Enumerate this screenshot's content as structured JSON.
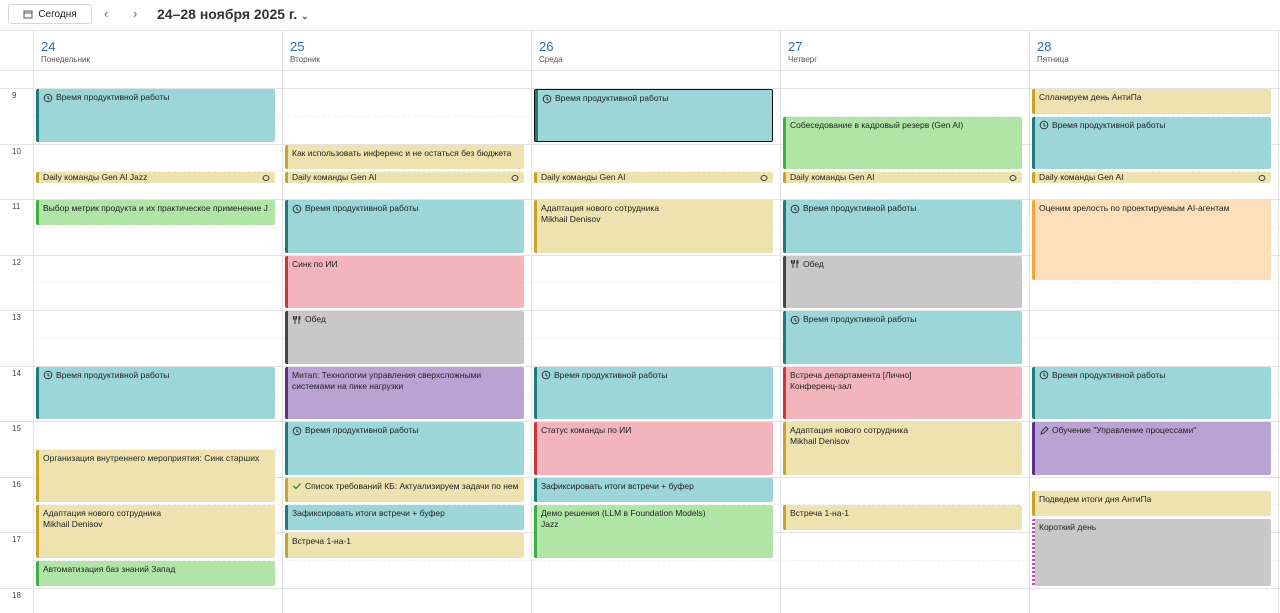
{
  "toolbar": {
    "today": "Сегодня",
    "range": "24–28 ноября 2025 г."
  },
  "hours": [
    9,
    10,
    11,
    12,
    13,
    14,
    15,
    16,
    17,
    18
  ],
  "days": [
    {
      "number": 24,
      "weekday": "Понедельник",
      "events": [
        {
          "title": "Время продуктивной работы"
        },
        {
          "title": "Daily команды Gen AI Jazz"
        },
        {
          "title": "Выбор метрик продукта и их практическое применение J"
        },
        {
          "title": "Время продуктивной работы"
        },
        {
          "title": "Организация внутреннего мероприятия: Синк старших"
        },
        {
          "title": "Адаптация нового сотрудника",
          "subtitle": "Mikhail Denisov"
        },
        {
          "title": "Автоматизация баз знаний Запад"
        }
      ]
    },
    {
      "number": 25,
      "weekday": "Вторник",
      "events": [
        {
          "title": "Как использовать инференс и не остаться без бюджета"
        },
        {
          "title": "Daily команды Gen AI"
        },
        {
          "title": "Время продуктивной работы"
        },
        {
          "title": "Синк по ИИ"
        },
        {
          "title": "Обед"
        },
        {
          "title": "Митап: Технологии управления сверхсложными системами на пике нагрузки"
        },
        {
          "title": "Время продуктивной работы"
        },
        {
          "title": "Список требований КБ: Актуализируем задачи по нем"
        },
        {
          "title": "Зафиксировать итоги встречи + буфер"
        },
        {
          "title": "Встреча 1-на-1"
        }
      ]
    },
    {
      "number": 26,
      "weekday": "Среда",
      "events": [
        {
          "title": "Время продуктивной работы"
        },
        {
          "title": "Daily команды Gen AI"
        },
        {
          "title": "Адаптация нового сотрудника",
          "subtitle": "Mikhail Denisov"
        },
        {
          "title": "Время продуктивной работы"
        },
        {
          "title": "Статус команды по ИИ"
        },
        {
          "title": "Зафиксировать итоги встречи + буфер"
        },
        {
          "title": "Демо решения (LLM в Foundation Models)",
          "subtitle": "Jazz"
        }
      ]
    },
    {
      "number": 27,
      "weekday": "Четверг",
      "events": [
        {
          "title": "Собеседование в кадровый резерв (Gen AI)"
        },
        {
          "title": "Daily команды Gen AI"
        },
        {
          "title": "Время продуктивной работы"
        },
        {
          "title": "Обед"
        },
        {
          "title": "Время продуктивной работы"
        },
        {
          "title": "Встреча департамента [Лично]",
          "subtitle": "Конференц-зал"
        },
        {
          "title": "Адаптация нового сотрудника",
          "subtitle": "Mikhail Denisov"
        },
        {
          "title": "Встреча 1-на-1"
        }
      ]
    },
    {
      "number": 28,
      "weekday": "Пятница",
      "events": [
        {
          "title": "Спланируем день АнтиПа"
        },
        {
          "title": "Время продуктивной работы"
        },
        {
          "title": "Daily команды Gen AI"
        },
        {
          "title": "Оценим зрелость по проектируемым AI-агентам"
        },
        {
          "title": "Время продуктивной работы"
        },
        {
          "title": "Обучение \"Управление процессами\""
        },
        {
          "title": "Подведем итоги дня АнтиПа"
        },
        {
          "title": "Короткий день"
        }
      ]
    }
  ]
}
